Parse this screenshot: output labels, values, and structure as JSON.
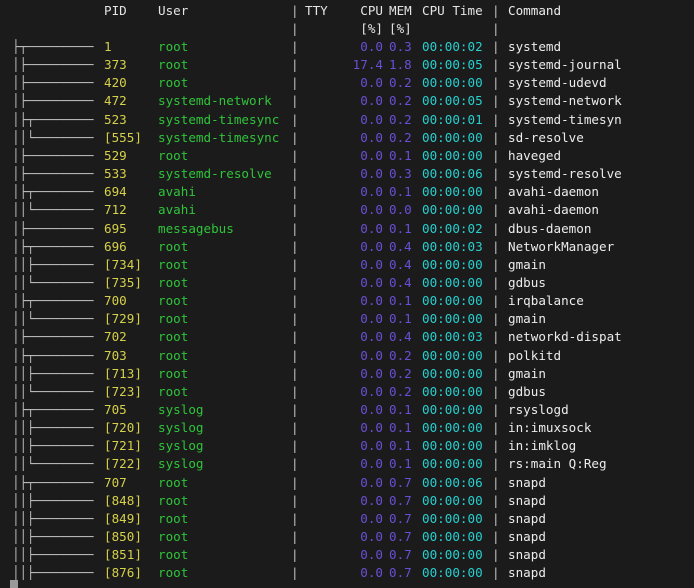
{
  "header": {
    "pid": "PID",
    "user": "User",
    "sep": "|",
    "tty": "TTY",
    "cpu": "CPU",
    "mem": "MEM",
    "cpu_time": "CPU Time",
    "command": "Command",
    "cpu_unit": "[%]",
    "mem_unit": "[%]"
  },
  "colors": {
    "background": "#1b1b1b",
    "pid": "#d6d04a",
    "user": "#2fc43a",
    "percent": "#6a4fd6",
    "time": "#27cfcf",
    "text": "#e4e4e4"
  },
  "processes": [
    {
      "tree": "├┬─────────",
      "pid": "1",
      "user": "root",
      "cpu": "0.0",
      "mem": "0.3",
      "time": "00:00:02",
      "command": "systemd"
    },
    {
      "tree": "│├─────────",
      "pid": "373",
      "user": "root",
      "cpu": "17.4",
      "mem": "1.8",
      "time": "00:00:05",
      "command": "systemd-journal"
    },
    {
      "tree": "│├─────────",
      "pid": "420",
      "user": "root",
      "cpu": "0.0",
      "mem": "0.2",
      "time": "00:00:00",
      "command": "systemd-udevd"
    },
    {
      "tree": "│├─────────",
      "pid": "472",
      "user": "systemd-network",
      "cpu": "0.0",
      "mem": "0.2",
      "time": "00:00:05",
      "command": "systemd-network"
    },
    {
      "tree": "│├┬────────",
      "pid": "523",
      "user": "systemd-timesync",
      "cpu": "0.0",
      "mem": "0.2",
      "time": "00:00:01",
      "command": "systemd-timesyn"
    },
    {
      "tree": "││└────────",
      "pid": "[555]",
      "user": "systemd-timesync",
      "cpu": "0.0",
      "mem": "0.2",
      "time": "00:00:00",
      "command": "sd-resolve"
    },
    {
      "tree": "│├─────────",
      "pid": "529",
      "user": "root",
      "cpu": "0.0",
      "mem": "0.1",
      "time": "00:00:00",
      "command": "haveged"
    },
    {
      "tree": "│├─────────",
      "pid": "533",
      "user": "systemd-resolve",
      "cpu": "0.0",
      "mem": "0.3",
      "time": "00:00:06",
      "command": "systemd-resolve"
    },
    {
      "tree": "│├┬────────",
      "pid": "694",
      "user": "avahi",
      "cpu": "0.0",
      "mem": "0.1",
      "time": "00:00:00",
      "command": "avahi-daemon"
    },
    {
      "tree": "││└────────",
      "pid": "712",
      "user": "avahi",
      "cpu": "0.0",
      "mem": "0.0",
      "time": "00:00:00",
      "command": "avahi-daemon"
    },
    {
      "tree": "│├─────────",
      "pid": "695",
      "user": "messagebus",
      "cpu": "0.0",
      "mem": "0.1",
      "time": "00:00:02",
      "command": "dbus-daemon"
    },
    {
      "tree": "│├┬────────",
      "pid": "696",
      "user": "root",
      "cpu": "0.0",
      "mem": "0.4",
      "time": "00:00:03",
      "command": "NetworkManager"
    },
    {
      "tree": "││├────────",
      "pid": "[734]",
      "user": "root",
      "cpu": "0.0",
      "mem": "0.4",
      "time": "00:00:00",
      "command": "gmain"
    },
    {
      "tree": "││└────────",
      "pid": "[735]",
      "user": "root",
      "cpu": "0.0",
      "mem": "0.4",
      "time": "00:00:00",
      "command": "gdbus"
    },
    {
      "tree": "│├┬────────",
      "pid": "700",
      "user": "root",
      "cpu": "0.0",
      "mem": "0.1",
      "time": "00:00:00",
      "command": "irqbalance"
    },
    {
      "tree": "││└────────",
      "pid": "[729]",
      "user": "root",
      "cpu": "0.0",
      "mem": "0.1",
      "time": "00:00:00",
      "command": "gmain"
    },
    {
      "tree": "│├─────────",
      "pid": "702",
      "user": "root",
      "cpu": "0.0",
      "mem": "0.4",
      "time": "00:00:03",
      "command": "networkd-dispat"
    },
    {
      "tree": "│├┬────────",
      "pid": "703",
      "user": "root",
      "cpu": "0.0",
      "mem": "0.2",
      "time": "00:00:00",
      "command": "polkitd"
    },
    {
      "tree": "││├────────",
      "pid": "[713]",
      "user": "root",
      "cpu": "0.0",
      "mem": "0.2",
      "time": "00:00:00",
      "command": "gmain"
    },
    {
      "tree": "││└────────",
      "pid": "[723]",
      "user": "root",
      "cpu": "0.0",
      "mem": "0.2",
      "time": "00:00:00",
      "command": "gdbus"
    },
    {
      "tree": "│├┬────────",
      "pid": "705",
      "user": "syslog",
      "cpu": "0.0",
      "mem": "0.1",
      "time": "00:00:00",
      "command": "rsyslogd"
    },
    {
      "tree": "││├────────",
      "pid": "[720]",
      "user": "syslog",
      "cpu": "0.0",
      "mem": "0.1",
      "time": "00:00:00",
      "command": "in:imuxsock"
    },
    {
      "tree": "││├────────",
      "pid": "[721]",
      "user": "syslog",
      "cpu": "0.0",
      "mem": "0.1",
      "time": "00:00:00",
      "command": "in:imklog"
    },
    {
      "tree": "││└────────",
      "pid": "[722]",
      "user": "syslog",
      "cpu": "0.0",
      "mem": "0.1",
      "time": "00:00:00",
      "command": "rs:main Q:Reg"
    },
    {
      "tree": "│├┬────────",
      "pid": "707",
      "user": "root",
      "cpu": "0.0",
      "mem": "0.7",
      "time": "00:00:06",
      "command": "snapd"
    },
    {
      "tree": "││├────────",
      "pid": "[848]",
      "user": "root",
      "cpu": "0.0",
      "mem": "0.7",
      "time": "00:00:00",
      "command": "snapd"
    },
    {
      "tree": "││├────────",
      "pid": "[849]",
      "user": "root",
      "cpu": "0.0",
      "mem": "0.7",
      "time": "00:00:00",
      "command": "snapd"
    },
    {
      "tree": "││├────────",
      "pid": "[850]",
      "user": "root",
      "cpu": "0.0",
      "mem": "0.7",
      "time": "00:00:00",
      "command": "snapd"
    },
    {
      "tree": "││├────────",
      "pid": "[851]",
      "user": "root",
      "cpu": "0.0",
      "mem": "0.7",
      "time": "00:00:00",
      "command": "snapd"
    },
    {
      "tree": "││├────────",
      "pid": "[876]",
      "user": "root",
      "cpu": "0.0",
      "mem": "0.7",
      "time": "00:00:00",
      "command": "snapd"
    }
  ]
}
